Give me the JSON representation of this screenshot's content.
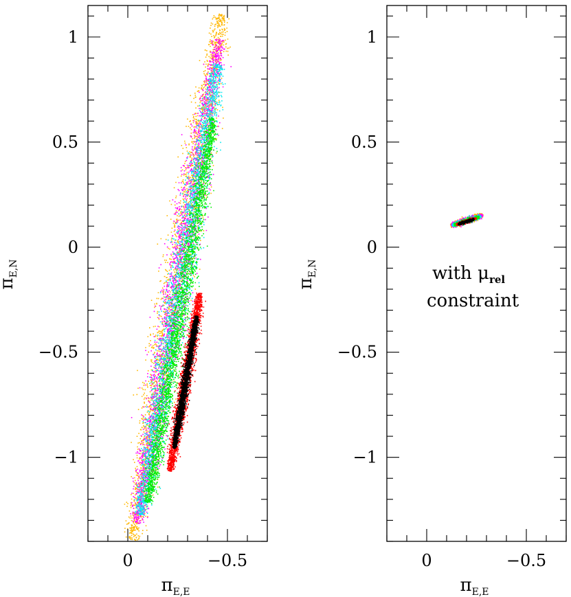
{
  "chart_data": [
    {
      "type": "scatter",
      "title": "",
      "xlabel": "π",
      "xlabel_sub": "E,E",
      "ylabel": "π",
      "ylabel_sub": "E,N",
      "xlim": [
        0.2,
        -0.7
      ],
      "ylim": [
        -1.4,
        1.15
      ],
      "xticks": [
        {
          "value": 0,
          "label": "0"
        },
        {
          "value": -0.5,
          "label": "−0.5"
        }
      ],
      "yticks": [
        {
          "value": 1,
          "label": "1"
        },
        {
          "value": 0.5,
          "label": "0.5"
        },
        {
          "value": 0,
          "label": "0"
        },
        {
          "value": -0.5,
          "label": "−0.5"
        },
        {
          "value": -1,
          "label": "−1"
        }
      ],
      "annotation": [],
      "series": [
        {
          "color": "#ffb700",
          "center": [
            -0.245,
            -0.14
          ],
          "slope": -0.18,
          "half_length": 1.27,
          "half_width": 0.085
        },
        {
          "color": "#ff00ff",
          "center": [
            -0.25,
            -0.16
          ],
          "slope": -0.18,
          "half_length": 1.17,
          "half_width": 0.075
        },
        {
          "color": "#00e8f0",
          "center": [
            -0.255,
            -0.2
          ],
          "slope": -0.18,
          "half_length": 1.09,
          "half_width": 0.068
        },
        {
          "color": "#00ee00",
          "center": [
            -0.262,
            -0.3
          ],
          "slope": -0.18,
          "half_length": 0.93,
          "half_width": 0.05
        },
        {
          "color": "#ff0000",
          "center": [
            -0.285,
            -0.64
          ],
          "slope": -0.18,
          "half_length": 0.43,
          "half_width": 0.032
        },
        {
          "color": "#000000",
          "center": [
            -0.287,
            -0.64
          ],
          "slope": -0.18,
          "half_length": 0.32,
          "half_width": 0.02
        }
      ]
    },
    {
      "type": "scatter",
      "title": "",
      "xlabel": "π",
      "xlabel_sub": "E,E",
      "ylabel": "π",
      "ylabel_sub": "E,N",
      "xlim": [
        0.2,
        -0.7
      ],
      "ylim": [
        -1.4,
        1.15
      ],
      "xticks": [
        {
          "value": 0,
          "label": "0"
        },
        {
          "value": -0.5,
          "label": "−0.5"
        }
      ],
      "yticks": [
        {
          "value": 1,
          "label": "1"
        },
        {
          "value": 0.5,
          "label": "0.5"
        },
        {
          "value": 0,
          "label": "0"
        },
        {
          "value": -0.5,
          "label": "−0.5"
        },
        {
          "value": -1,
          "label": "−1"
        }
      ],
      "annotation": [
        "with μ",
        "rel",
        "constraint"
      ],
      "series": [
        {
          "color": "#ffb700",
          "center": [
            -0.2,
            0.13
          ],
          "slope": 0.3,
          "half_length": 0.085,
          "half_width": 0.017
        },
        {
          "color": "#ff00ff",
          "center": [
            -0.2,
            0.13
          ],
          "slope": 0.3,
          "half_length": 0.082,
          "half_width": 0.015
        },
        {
          "color": "#00e8f0",
          "center": [
            -0.198,
            0.128
          ],
          "slope": 0.3,
          "half_length": 0.076,
          "half_width": 0.013
        },
        {
          "color": "#00ee00",
          "center": [
            -0.197,
            0.127
          ],
          "slope": 0.3,
          "half_length": 0.066,
          "half_width": 0.011
        },
        {
          "color": "#ff0000",
          "center": [
            -0.196,
            0.125
          ],
          "slope": 0.3,
          "half_length": 0.052,
          "half_width": 0.009
        },
        {
          "color": "#000000",
          "center": [
            -0.195,
            0.124
          ],
          "slope": 0.3,
          "half_length": 0.042,
          "half_width": 0.007
        }
      ]
    }
  ]
}
